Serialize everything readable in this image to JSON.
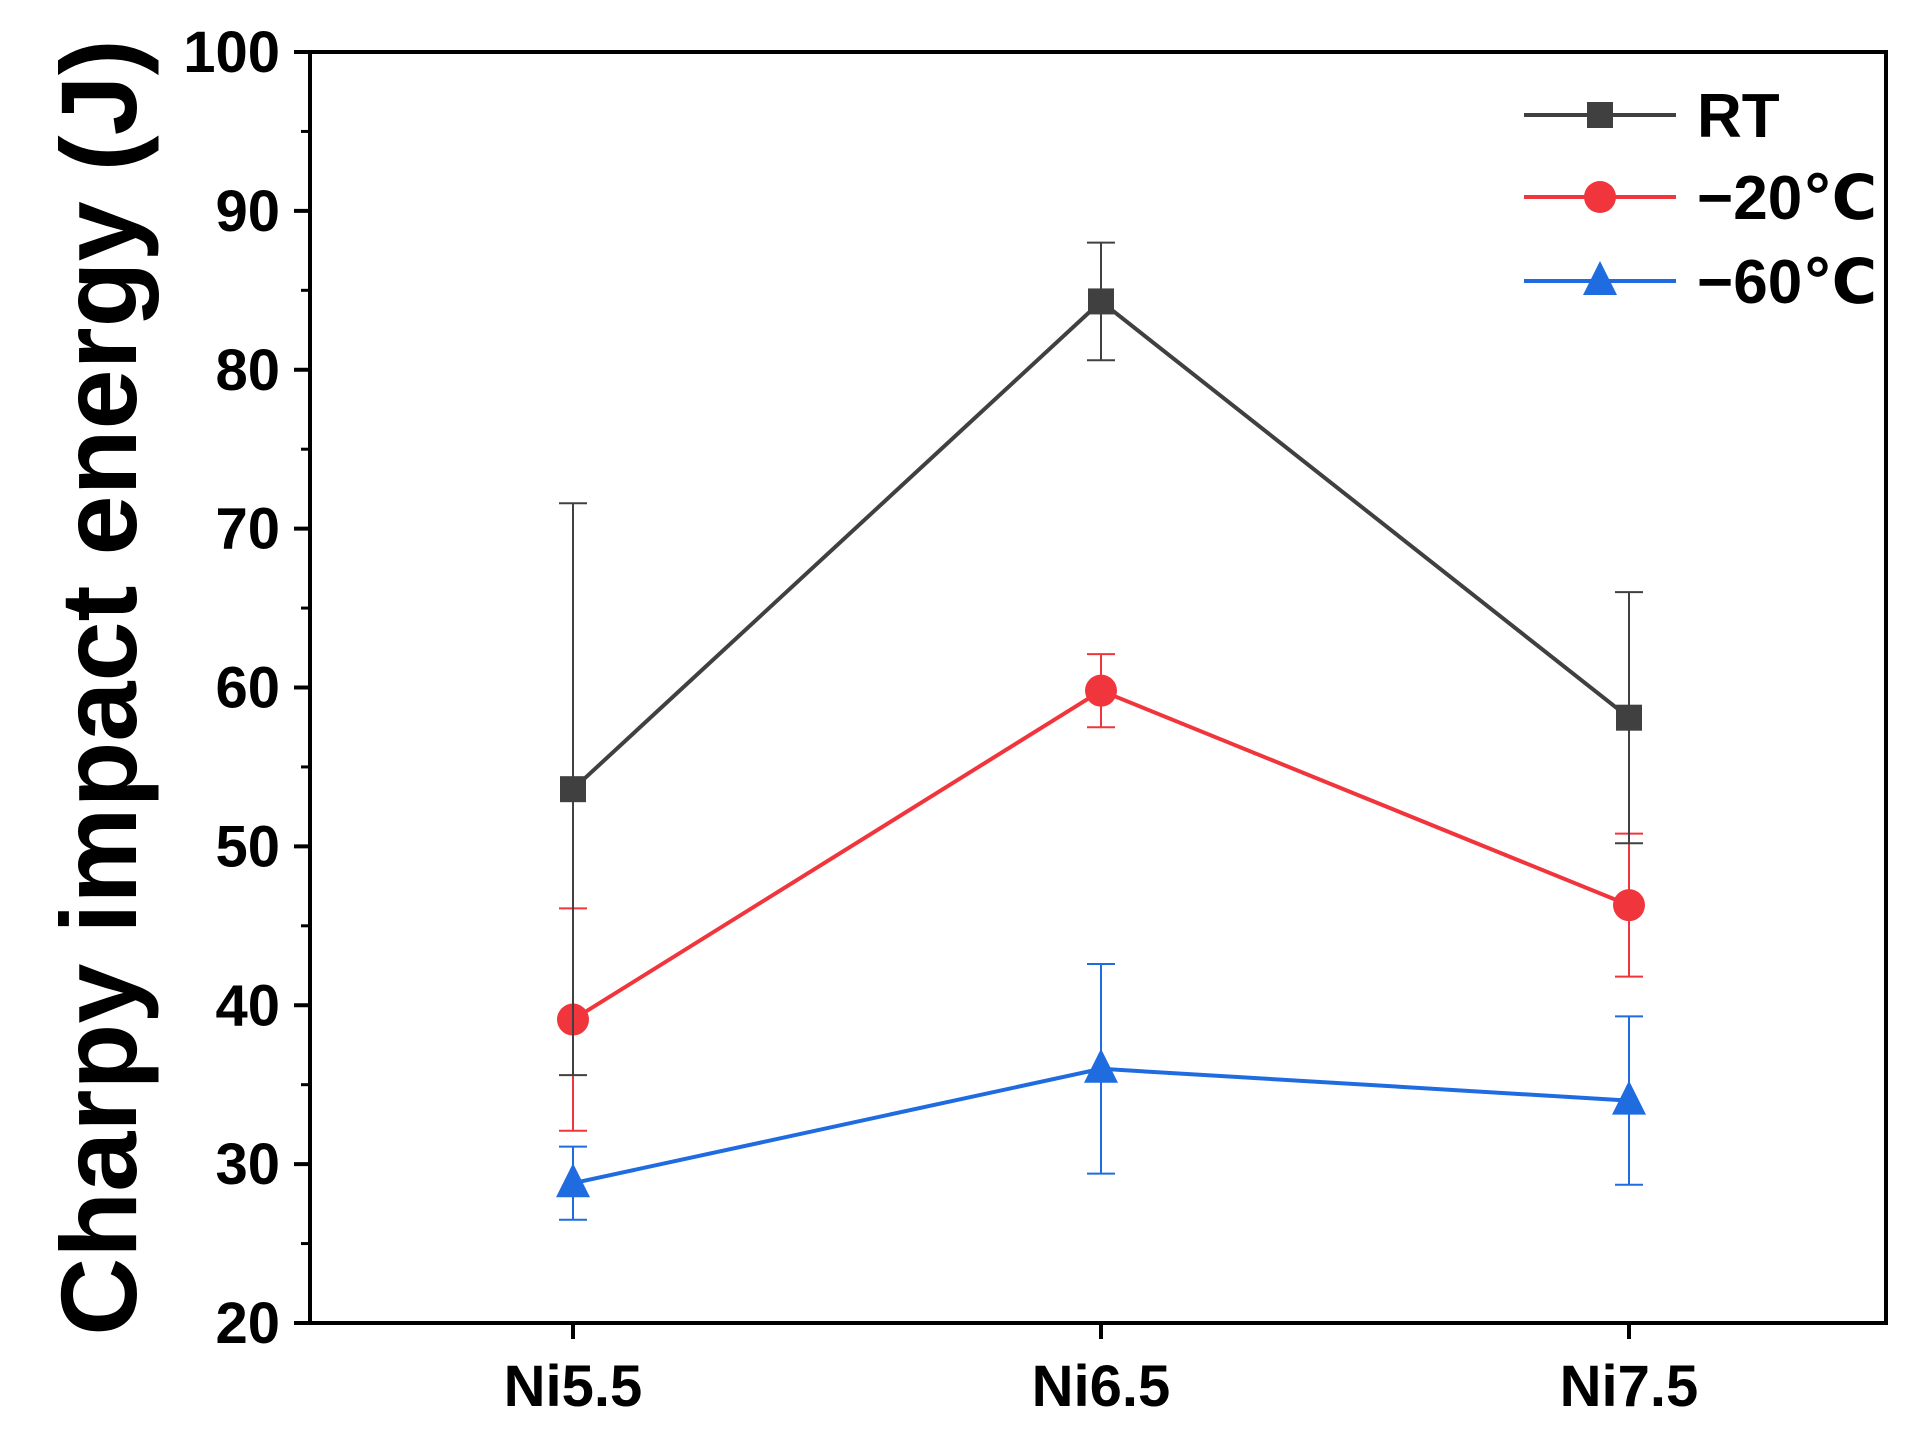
{
  "chart_data": {
    "type": "line",
    "title": "",
    "xlabel": "",
    "ylabel": "Charpy impact energy (J)",
    "categories": [
      "Ni5.5",
      "Ni6.5",
      "Ni7.5"
    ],
    "ylim": [
      20,
      100
    ],
    "yticks": [
      20,
      30,
      40,
      50,
      60,
      70,
      80,
      90,
      100
    ],
    "ytick_labels": [
      "20",
      "30",
      "40",
      "50",
      "60",
      "70",
      "80",
      "90",
      "100"
    ],
    "grid": false,
    "legend_position": "top-right",
    "series": [
      {
        "name": "RT",
        "marker": "square",
        "color": "#404040",
        "values": [
          53.6,
          84.3,
          58.1
        ],
        "errors": [
          18.0,
          3.7,
          7.9
        ]
      },
      {
        "name": "−20℃",
        "marker": "circle",
        "color": "#f0363c",
        "values": [
          39.1,
          59.8,
          46.3
        ],
        "errors": [
          7.0,
          2.3,
          4.5
        ]
      },
      {
        "name": "−60℃",
        "marker": "triangle",
        "color": "#1f6be0",
        "values": [
          28.8,
          36.0,
          34.0
        ],
        "errors": [
          2.3,
          6.6,
          5.3
        ]
      }
    ]
  }
}
